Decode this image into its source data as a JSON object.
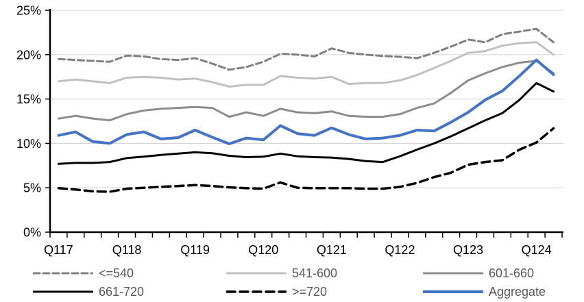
{
  "chart_data": {
    "type": "line",
    "title": "",
    "y_axis": {
      "min": 0,
      "max": 25,
      "tick_step": 5,
      "tick_labels": [
        "0%",
        "5%",
        "10%",
        "15%",
        "20%",
        "25%"
      ],
      "grid": "horizontal-only",
      "grid_color": "#d9d9d9"
    },
    "x_axis": {
      "total_points": 30,
      "points_per_label": 4,
      "tick_labels": [
        "Q117",
        "Q118",
        "Q119",
        "Q120",
        "Q121",
        "Q122",
        "Q123",
        "Q124"
      ]
    },
    "legend_position": "bottom",
    "series": [
      {
        "name": "<=540",
        "color": "#7f7f7f",
        "style": "dashed",
        "dash": "9 5",
        "width": 3,
        "values": [
          19.5,
          19.4,
          19.3,
          19.2,
          19.9,
          19.8,
          19.5,
          19.4,
          19.6,
          19.0,
          18.3,
          18.6,
          19.2,
          20.1,
          20.0,
          19.8,
          20.7,
          20.2,
          20.0,
          19.85,
          19.75,
          19.6,
          20.2,
          20.9,
          21.7,
          21.4,
          22.3,
          22.6,
          22.9,
          21.4
        ]
      },
      {
        "name": "541-600",
        "color": "#c0c0c0",
        "style": "solid",
        "dash": "",
        "width": 3,
        "values": [
          17.0,
          17.2,
          17.0,
          16.8,
          17.4,
          17.5,
          17.4,
          17.2,
          17.3,
          16.9,
          16.4,
          16.6,
          16.6,
          17.6,
          17.4,
          17.3,
          17.5,
          16.7,
          16.8,
          16.8,
          17.1,
          17.7,
          18.5,
          19.3,
          20.2,
          20.4,
          21.0,
          21.3,
          21.4,
          20.0
        ]
      },
      {
        "name": "601-660",
        "color": "#8c8c8c",
        "style": "solid",
        "dash": "",
        "width": 3,
        "values": [
          12.8,
          13.1,
          12.8,
          12.6,
          13.3,
          13.7,
          13.9,
          14.0,
          14.1,
          14.0,
          13.0,
          13.5,
          13.1,
          13.9,
          13.5,
          13.4,
          13.6,
          13.1,
          13.0,
          13.0,
          13.3,
          14.0,
          14.5,
          15.7,
          17.1,
          17.9,
          18.6,
          19.1,
          19.3,
          17.9
        ]
      },
      {
        "name": "661-720",
        "color": "#000000",
        "style": "solid",
        "dash": "",
        "width": 3,
        "values": [
          7.7,
          7.8,
          7.8,
          7.9,
          8.35,
          8.5,
          8.7,
          8.85,
          9.0,
          8.9,
          8.6,
          8.45,
          8.5,
          8.85,
          8.55,
          8.45,
          8.4,
          8.25,
          8.0,
          7.9,
          8.55,
          9.3,
          10.0,
          10.8,
          11.7,
          12.6,
          13.4,
          14.9,
          16.8,
          15.85
        ]
      },
      {
        "name": ">=720",
        "color": "#000000",
        "style": "dashed",
        "dash": "12 7",
        "width": 3.5,
        "values": [
          4.95,
          4.8,
          4.6,
          4.55,
          4.9,
          5.0,
          5.1,
          5.2,
          5.3,
          5.2,
          5.05,
          4.95,
          4.9,
          5.6,
          5.0,
          4.95,
          4.95,
          4.95,
          4.9,
          4.9,
          5.1,
          5.55,
          6.2,
          6.7,
          7.6,
          7.9,
          8.1,
          9.3,
          10.1,
          11.7
        ]
      },
      {
        "name": "Aggregate",
        "color": "#4472c4",
        "style": "solid",
        "dash": "",
        "width": 4,
        "values": [
          10.9,
          11.3,
          10.2,
          10.0,
          11.0,
          11.3,
          10.5,
          10.65,
          11.5,
          10.7,
          9.95,
          10.6,
          10.4,
          12.0,
          11.1,
          10.9,
          11.75,
          11.0,
          10.5,
          10.6,
          10.9,
          11.5,
          11.4,
          12.4,
          13.5,
          14.9,
          15.9,
          17.6,
          19.4,
          17.75
        ]
      }
    ],
    "legend": {
      "rows": 2,
      "cols": 3,
      "entries": [
        "<=540",
        "541-600",
        "601-660",
        "661-720",
        ">=720",
        "Aggregate"
      ]
    }
  },
  "layout_text": {
    "note": ""
  }
}
